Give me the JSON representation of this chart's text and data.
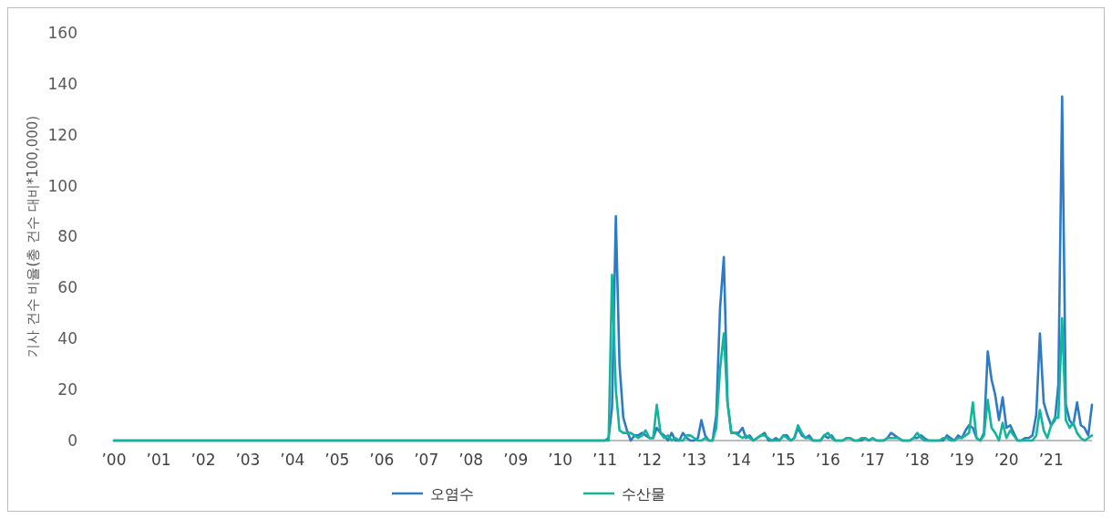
{
  "chart_data": {
    "type": "line",
    "ylabel": "기사 건수 비율(총 건수 대비*100,000)",
    "x": [
      "2000-01",
      "2000-02",
      "2000-03",
      "2000-04",
      "2000-05",
      "2000-06",
      "2000-07",
      "2000-08",
      "2000-09",
      "2000-10",
      "2000-11",
      "2000-12",
      "2001-01",
      "2001-02",
      "2001-03",
      "2001-04",
      "2001-05",
      "2001-06",
      "2001-07",
      "2001-08",
      "2001-09",
      "2001-10",
      "2001-11",
      "2001-12",
      "2002-01",
      "2002-02",
      "2002-03",
      "2002-04",
      "2002-05",
      "2002-06",
      "2002-07",
      "2002-08",
      "2002-09",
      "2002-10",
      "2002-11",
      "2002-12",
      "2003-01",
      "2003-02",
      "2003-03",
      "2003-04",
      "2003-05",
      "2003-06",
      "2003-07",
      "2003-08",
      "2003-09",
      "2003-10",
      "2003-11",
      "2003-12",
      "2004-01",
      "2004-02",
      "2004-03",
      "2004-04",
      "2004-05",
      "2004-06",
      "2004-07",
      "2004-08",
      "2004-09",
      "2004-10",
      "2004-11",
      "2004-12",
      "2005-01",
      "2005-02",
      "2005-03",
      "2005-04",
      "2005-05",
      "2005-06",
      "2005-07",
      "2005-08",
      "2005-09",
      "2005-10",
      "2005-11",
      "2005-12",
      "2006-01",
      "2006-02",
      "2006-03",
      "2006-04",
      "2006-05",
      "2006-06",
      "2006-07",
      "2006-08",
      "2006-09",
      "2006-10",
      "2006-11",
      "2006-12",
      "2007-01",
      "2007-02",
      "2007-03",
      "2007-04",
      "2007-05",
      "2007-06",
      "2007-07",
      "2007-08",
      "2007-09",
      "2007-10",
      "2007-11",
      "2007-12",
      "2008-01",
      "2008-02",
      "2008-03",
      "2008-04",
      "2008-05",
      "2008-06",
      "2008-07",
      "2008-08",
      "2008-09",
      "2008-10",
      "2008-11",
      "2008-12",
      "2009-01",
      "2009-02",
      "2009-03",
      "2009-04",
      "2009-05",
      "2009-06",
      "2009-07",
      "2009-08",
      "2009-09",
      "2009-10",
      "2009-11",
      "2009-12",
      "2010-01",
      "2010-02",
      "2010-03",
      "2010-04",
      "2010-05",
      "2010-06",
      "2010-07",
      "2010-08",
      "2010-09",
      "2010-10",
      "2010-11",
      "2010-12",
      "2011-01",
      "2011-02",
      "2011-03",
      "2011-04",
      "2011-05",
      "2011-06",
      "2011-07",
      "2011-08",
      "2011-09",
      "2011-10",
      "2011-11",
      "2011-12",
      "2012-01",
      "2012-02",
      "2012-03",
      "2012-04",
      "2012-05",
      "2012-06",
      "2012-07",
      "2012-08",
      "2012-09",
      "2012-10",
      "2012-11",
      "2012-12",
      "2013-01",
      "2013-02",
      "2013-03",
      "2013-04",
      "2013-05",
      "2013-06",
      "2013-07",
      "2013-08",
      "2013-09",
      "2013-10",
      "2013-11",
      "2013-12",
      "2014-01",
      "2014-02",
      "2014-03",
      "2014-04",
      "2014-05",
      "2014-06",
      "2014-07",
      "2014-08",
      "2014-09",
      "2014-10",
      "2014-11",
      "2014-12",
      "2015-01",
      "2015-02",
      "2015-03",
      "2015-04",
      "2015-05",
      "2015-06",
      "2015-07",
      "2015-08",
      "2015-09",
      "2015-10",
      "2015-11",
      "2015-12",
      "2016-01",
      "2016-02",
      "2016-03",
      "2016-04",
      "2016-05",
      "2016-06",
      "2016-07",
      "2016-08",
      "2016-09",
      "2016-10",
      "2016-11",
      "2016-12",
      "2017-01",
      "2017-02",
      "2017-03",
      "2017-04",
      "2017-05",
      "2017-06",
      "2017-07",
      "2017-08",
      "2017-09",
      "2017-10",
      "2017-11",
      "2017-12",
      "2018-01",
      "2018-02",
      "2018-03",
      "2018-04",
      "2018-05",
      "2018-06",
      "2018-07",
      "2018-08",
      "2018-09",
      "2018-10",
      "2018-11",
      "2018-12",
      "2019-01",
      "2019-02",
      "2019-03",
      "2019-04",
      "2019-05",
      "2019-06",
      "2019-07",
      "2019-08",
      "2019-09",
      "2019-10",
      "2019-11",
      "2019-12",
      "2020-01",
      "2020-02",
      "2020-03",
      "2020-04",
      "2020-05",
      "2020-06",
      "2020-07",
      "2020-08",
      "2020-09",
      "2020-10",
      "2020-11",
      "2020-12",
      "2021-01",
      "2021-02",
      "2021-03",
      "2021-04",
      "2021-05",
      "2021-06",
      "2021-07",
      "2021-08",
      "2021-09",
      "2021-10",
      "2021-11",
      "2021-12"
    ],
    "series": [
      {
        "name": "오염수",
        "color": "#2e7bc4",
        "values": [
          0,
          0,
          0,
          0,
          0,
          0,
          0,
          0,
          0,
          0,
          0,
          0,
          0,
          0,
          0,
          0,
          0,
          0,
          0,
          0,
          0,
          0,
          0,
          0,
          0,
          0,
          0,
          0,
          0,
          0,
          0,
          0,
          0,
          0,
          0,
          0,
          0,
          0,
          0,
          0,
          0,
          0,
          0,
          0,
          0,
          0,
          0,
          0,
          0,
          0,
          0,
          0,
          0,
          0,
          0,
          0,
          0,
          0,
          0,
          0,
          0,
          0,
          0,
          0,
          0,
          0,
          0,
          0,
          0,
          0,
          0,
          0,
          0,
          0,
          0,
          0,
          0,
          0,
          0,
          0,
          0,
          0,
          0,
          0,
          0,
          0,
          0,
          0,
          0,
          0,
          0,
          0,
          0,
          0,
          0,
          0,
          0,
          0,
          0,
          0,
          0,
          0,
          0,
          0,
          0,
          0,
          0,
          0,
          0,
          0,
          0,
          0,
          0,
          0,
          0,
          0,
          0,
          0,
          0,
          0,
          0,
          0,
          0,
          0,
          0,
          0,
          0,
          0,
          0,
          0,
          0,
          0,
          0,
          1,
          13,
          88,
          30,
          9,
          4,
          0,
          2,
          2,
          3,
          2,
          1,
          1,
          5,
          3,
          2,
          0,
          3,
          0,
          0,
          3,
          1,
          0,
          0,
          1,
          8,
          2,
          0,
          0,
          10,
          52,
          72,
          15,
          3,
          3,
          3,
          5,
          1,
          2,
          0,
          1,
          2,
          3,
          0,
          0,
          1,
          0,
          2,
          2,
          0,
          1,
          5,
          2,
          1,
          2,
          0,
          0,
          0,
          2,
          1,
          2,
          0,
          0,
          0,
          1,
          1,
          0,
          0,
          0,
          1,
          0,
          1,
          0,
          0,
          0,
          1,
          3,
          2,
          1,
          0,
          0,
          0,
          1,
          1,
          2,
          1,
          0,
          0,
          0,
          0,
          0,
          2,
          1,
          0,
          2,
          1,
          4,
          6,
          5,
          1,
          0,
          3,
          35,
          24,
          18,
          8,
          17,
          5,
          6,
          3,
          0,
          0,
          1,
          1,
          2,
          10,
          42,
          15,
          10,
          6,
          8,
          22,
          135,
          14,
          8,
          6,
          15,
          6,
          5,
          2,
          14
        ]
      },
      {
        "name": "수산물",
        "color": "#13b59a",
        "values": [
          0,
          0,
          0,
          0,
          0,
          0,
          0,
          0,
          0,
          0,
          0,
          0,
          0,
          0,
          0,
          0,
          0,
          0,
          0,
          0,
          0,
          0,
          0,
          0,
          0,
          0,
          0,
          0,
          0,
          0,
          0,
          0,
          0,
          0,
          0,
          0,
          0,
          0,
          0,
          0,
          0,
          0,
          0,
          0,
          0,
          0,
          0,
          0,
          0,
          0,
          0,
          0,
          0,
          0,
          0,
          0,
          0,
          0,
          0,
          0,
          0,
          0,
          0,
          0,
          0,
          0,
          0,
          0,
          0,
          0,
          0,
          0,
          0,
          0,
          0,
          0,
          0,
          0,
          0,
          0,
          0,
          0,
          0,
          0,
          0,
          0,
          0,
          0,
          0,
          0,
          0,
          0,
          0,
          0,
          0,
          0,
          0,
          0,
          0,
          0,
          0,
          0,
          0,
          0,
          0,
          0,
          0,
          0,
          0,
          0,
          0,
          0,
          0,
          0,
          0,
          0,
          0,
          0,
          0,
          0,
          0,
          0,
          0,
          0,
          0,
          0,
          0,
          0,
          0,
          0,
          0,
          0,
          0,
          0,
          65,
          20,
          4,
          3,
          3,
          3,
          2,
          1,
          2,
          4,
          1,
          1,
          14,
          3,
          1,
          2,
          0,
          1,
          0,
          0,
          2,
          2,
          1,
          0,
          0,
          1,
          0,
          0,
          5,
          28,
          42,
          15,
          3,
          3,
          2,
          1,
          2,
          1,
          0,
          1,
          2,
          2,
          1,
          0,
          0,
          0,
          2,
          1,
          0,
          1,
          6,
          3,
          1,
          1,
          0,
          0,
          0,
          2,
          3,
          1,
          0,
          0,
          0,
          1,
          1,
          0,
          0,
          1,
          1,
          0,
          1,
          0,
          0,
          0,
          1,
          1,
          1,
          1,
          0,
          0,
          0,
          1,
          3,
          1,
          0,
          0,
          0,
          0,
          0,
          1,
          1,
          0,
          0,
          1,
          1,
          2,
          3,
          15,
          1,
          0,
          2,
          16,
          5,
          3,
          0,
          7,
          1,
          4,
          2,
          0,
          0,
          0,
          0,
          0,
          2,
          12,
          4,
          1,
          6,
          9,
          9,
          48,
          8,
          5,
          7,
          3,
          1,
          0,
          1,
          2
        ]
      }
    ],
    "xlim": [
      "2000-01",
      "2021-12"
    ],
    "xticks": [
      {
        "value": "2000-01",
        "label": "’00"
      },
      {
        "value": "2001-01",
        "label": "’01"
      },
      {
        "value": "2002-01",
        "label": "’02"
      },
      {
        "value": "2003-01",
        "label": "’03"
      },
      {
        "value": "2004-01",
        "label": "’04"
      },
      {
        "value": "2005-01",
        "label": "’05"
      },
      {
        "value": "2006-01",
        "label": "’06"
      },
      {
        "value": "2007-01",
        "label": "’07"
      },
      {
        "value": "2008-01",
        "label": "’08"
      },
      {
        "value": "2009-01",
        "label": "’09"
      },
      {
        "value": "2010-01",
        "label": "’10"
      },
      {
        "value": "2011-01",
        "label": "’11"
      },
      {
        "value": "2012-01",
        "label": "’12"
      },
      {
        "value": "2013-01",
        "label": "’13"
      },
      {
        "value": "2014-01",
        "label": "’14"
      },
      {
        "value": "2015-01",
        "label": "’15"
      },
      {
        "value": "2016-01",
        "label": "’16"
      },
      {
        "value": "2017-01",
        "label": "’17"
      },
      {
        "value": "2018-01",
        "label": "’18"
      },
      {
        "value": "2019-01",
        "label": "’19"
      },
      {
        "value": "2020-01",
        "label": "’20"
      },
      {
        "value": "2021-01",
        "label": "’21"
      }
    ],
    "ylim": [
      0,
      160
    ],
    "yticks": [
      0,
      20,
      40,
      60,
      80,
      100,
      120,
      140,
      160
    ],
    "grid": false,
    "legend": "bottom",
    "marker": "none",
    "line_style": "solid"
  }
}
